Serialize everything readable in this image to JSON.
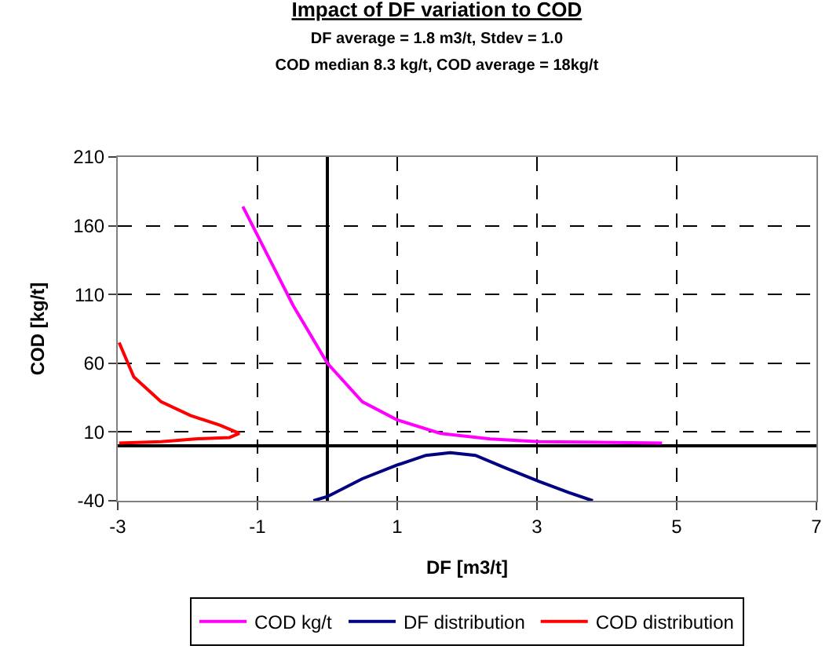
{
  "chart_data": {
    "type": "line",
    "title": "Impact of DF variation to COD",
    "subtitle": "DF average = 1.8 m3/t, Stdev = 1.0\nCOD median 8.3 kg/t, COD average = 18kg/t",
    "xlabel": "DF [m3/t]",
    "ylabel": "COD [kg/t]",
    "xlim": [
      -3,
      7
    ],
    "xticks": [
      -3,
      -1,
      1,
      3,
      5,
      7
    ],
    "ylim": [
      -40,
      210
    ],
    "yticks": [
      -40,
      10,
      60,
      110,
      160,
      210
    ],
    "grid": true,
    "legend": "bottom",
    "marker": "none",
    "line_style": "solid",
    "series": [
      {
        "name": "COD kg/t",
        "color": "#ff00ff",
        "x": [
          -1.21,
          -0.98,
          -0.49,
          0,
          0.5,
          0.99,
          1.62,
          2.33,
          3.03,
          4.79
        ],
        "values": [
          174,
          151,
          102,
          60,
          32,
          19,
          9,
          5,
          3,
          2
        ]
      },
      {
        "name": "DF distribution",
        "color": "#000080",
        "x": [
          -0.2,
          0,
          0.5,
          1,
          1.41,
          1.76,
          2.12,
          2.54,
          3.03,
          3.45,
          3.8
        ],
        "values": [
          -40,
          -37,
          -24,
          -14,
          -7,
          -5,
          -7,
          -16,
          -26,
          -34,
          -40
        ]
      },
      {
        "name": "COD distribution",
        "color": "#ff0000",
        "x": [
          -2.98,
          -2.77,
          -2.38,
          -1.96,
          -1.54,
          -1.26,
          -1.4,
          -1.89,
          -2.38,
          -2.98
        ],
        "values": [
          75,
          50,
          32,
          22,
          15,
          9,
          6,
          5,
          3,
          2
        ]
      }
    ]
  }
}
